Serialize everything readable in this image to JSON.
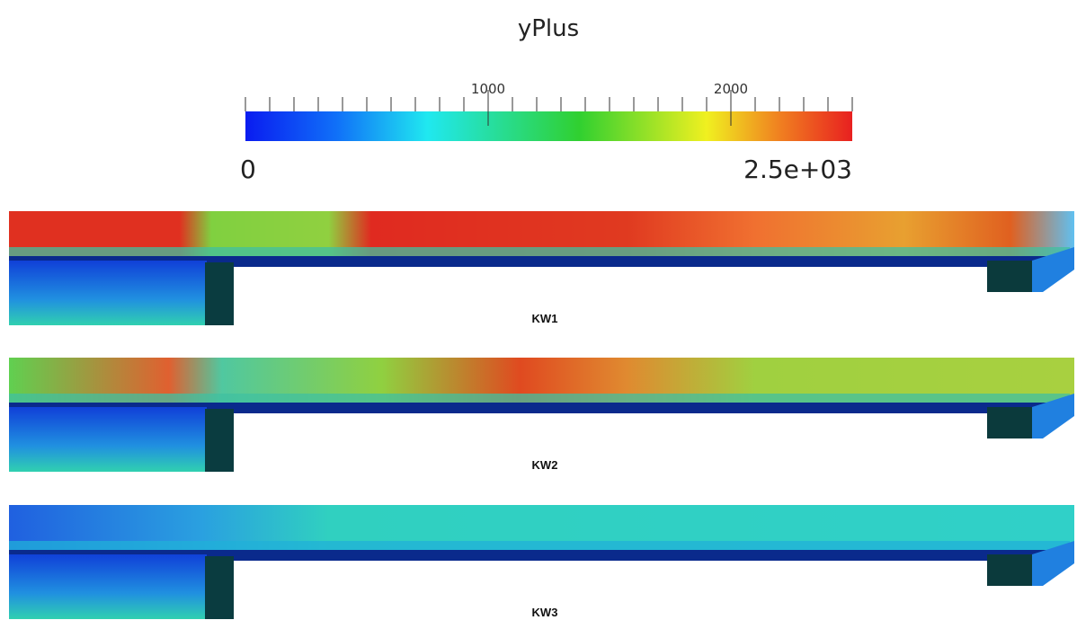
{
  "title": "yPlus",
  "colorbar": {
    "range": [
      0,
      2500
    ],
    "ticks": [
      1000,
      2000
    ],
    "end_labels": [
      0,
      {
        "value": 2500,
        "label": "2.5e+03"
      }
    ],
    "minor_ticks": [
      0,
      100,
      200,
      300,
      400,
      500,
      600,
      700,
      800,
      900,
      1000,
      1100,
      1200,
      1300,
      1400,
      1500,
      1600,
      1700,
      1800,
      1900,
      2000,
      2100,
      2200,
      2300,
      2400,
      2500
    ]
  },
  "panels": [
    {
      "label": "KW1"
    },
    {
      "label": "KW2"
    },
    {
      "label": "KW3"
    }
  ]
}
